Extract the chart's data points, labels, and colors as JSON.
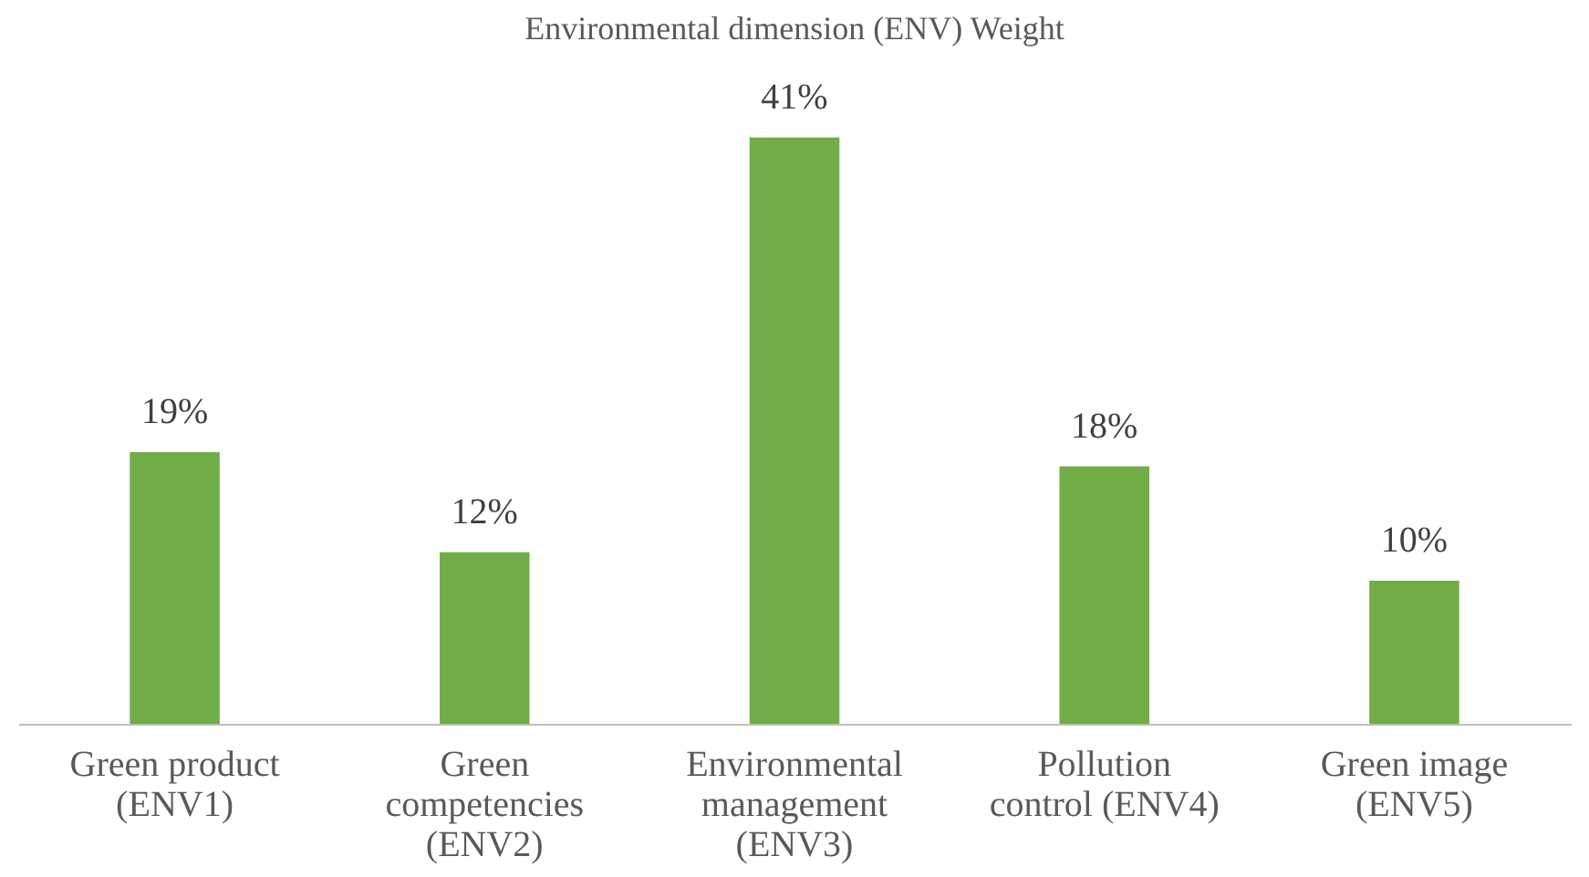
{
  "chart_data": {
    "type": "bar",
    "title": "Environmental dimension (ENV) Weight",
    "categories": [
      "Green product (ENV1)",
      "Green competencies (ENV2)",
      "Environmental management (ENV3)",
      "Pollution control (ENV4)",
      "Green image (ENV5)"
    ],
    "values": [
      19,
      12,
      41,
      18,
      10
    ],
    "value_labels": [
      "19%",
      "12%",
      "41%",
      "18%",
      "10%"
    ],
    "color": "#70ad47",
    "tick_labels": "x"
  }
}
